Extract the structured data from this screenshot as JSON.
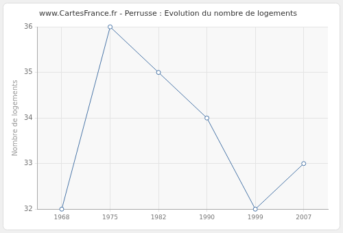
{
  "chart_data": {
    "type": "line",
    "title": "www.CartesFrance.fr - Perrusse : Evolution du nombre de logements",
    "y_label": "Nombre de logements",
    "categories": [
      "1968",
      "1975",
      "1982",
      "1990",
      "1999",
      "2007"
    ],
    "values": [
      32,
      36,
      35,
      34,
      32,
      33
    ],
    "color": "#4a76a8",
    "marker": "circle",
    "ylim": [
      32,
      36
    ],
    "yticks": [
      32,
      33,
      34,
      35,
      36
    ],
    "grid": true
  }
}
